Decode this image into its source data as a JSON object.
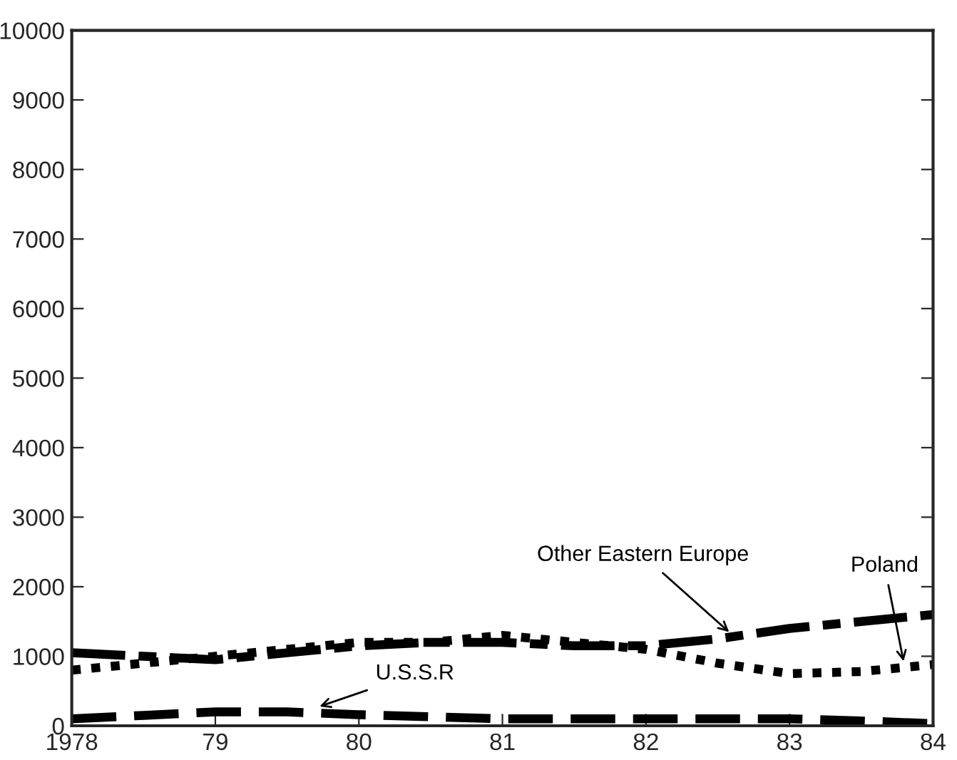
{
  "chart_data": {
    "type": "line",
    "x": [
      1978,
      1978.5,
      1979,
      1979.5,
      1980,
      1980.5,
      1981,
      1981.5,
      1982,
      1982.5,
      1983,
      1983.5,
      1984
    ],
    "series": [
      {
        "name": "Other Eastern Europe",
        "color": "#000000",
        "line_style": "dashed",
        "values": [
          1050,
          1000,
          950,
          1050,
          1150,
          1200,
          1200,
          1150,
          1150,
          1250,
          1400,
          1500,
          1600
        ]
      },
      {
        "name": "Poland",
        "color": "#000000",
        "line_style": "dotted",
        "values": [
          800,
          900,
          1000,
          1100,
          1200,
          1200,
          1300,
          1200,
          1100,
          900,
          750,
          780,
          880
        ]
      },
      {
        "name": "U.S.S.R",
        "color": "#000000",
        "line_style": "dashed",
        "values": [
          100,
          150,
          200,
          200,
          160,
          130,
          100,
          100,
          100,
          100,
          100,
          70,
          30
        ]
      }
    ],
    "xlim": [
      1978,
      1984
    ],
    "xticks": [
      {
        "value": 1978,
        "label": "1978"
      },
      {
        "value": 1979,
        "label": "79"
      },
      {
        "value": 1980,
        "label": "80"
      },
      {
        "value": 1981,
        "label": "81"
      },
      {
        "value": 1982,
        "label": "82"
      },
      {
        "value": 1983,
        "label": "83"
      },
      {
        "value": 1984,
        "label": "84"
      }
    ],
    "ylim": [
      0,
      10000
    ],
    "yticks": [
      0,
      1000,
      2000,
      3000,
      4000,
      5000,
      6000,
      7000,
      8000,
      9000,
      10000
    ],
    "legend": false,
    "grid": false
  }
}
